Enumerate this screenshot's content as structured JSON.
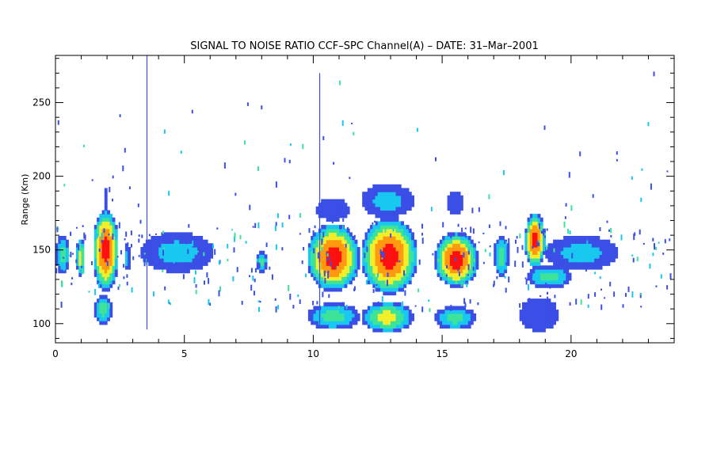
{
  "chart_data": {
    "type": "heatmap",
    "title": "SIGNAL TO NOISE RATIO CCF–SPC Channel(A) – DATE: 31–Mar–2001",
    "xlabel": "",
    "ylabel": "Range (Km)",
    "xlim": [
      0,
      24
    ],
    "ylim": [
      87,
      282
    ],
    "x_ticks": [
      0,
      5,
      10,
      15,
      20
    ],
    "x_tick_labels": [
      "0",
      "5",
      "10",
      "15",
      "20"
    ],
    "y_ticks": [
      100,
      150,
      200,
      250
    ],
    "y_tick_labels": [
      "100",
      "150",
      "200",
      "250"
    ],
    "grid": false,
    "colormap": [
      "#ffffff",
      "#3b4fe6",
      "#18c8ee",
      "#3ee39a",
      "#f2ef2a",
      "#ff9a10",
      "#ff1010"
    ],
    "echoes": [
      {
        "t0": 0.0,
        "t1": 0.55,
        "r0": 134,
        "r1": 160,
        "level": 3
      },
      {
        "t0": 0.8,
        "t1": 1.15,
        "r0": 132,
        "r1": 158,
        "level": 4
      },
      {
        "t0": 1.45,
        "t1": 2.45,
        "r0": 122,
        "r1": 178,
        "level": 6
      },
      {
        "t0": 1.85,
        "t1": 2.05,
        "r0": 176,
        "r1": 192,
        "level": 1
      },
      {
        "t0": 1.5,
        "t1": 2.2,
        "r0": 100,
        "r1": 120,
        "level": 3
      },
      {
        "t0": 2.65,
        "t1": 2.9,
        "r0": 136,
        "r1": 154,
        "level": 2
      },
      {
        "t0": 3.3,
        "t1": 6.15,
        "r0": 135,
        "r1": 162,
        "level": 2
      },
      {
        "t0": 7.8,
        "t1": 8.2,
        "r0": 135,
        "r1": 150,
        "level": 3
      },
      {
        "t0": 9.75,
        "t1": 11.8,
        "r0": 122,
        "r1": 168,
        "level": 6
      },
      {
        "t0": 10.1,
        "t1": 11.4,
        "r0": 170,
        "r1": 185,
        "level": 1
      },
      {
        "t0": 9.75,
        "t1": 11.8,
        "r0": 96,
        "r1": 114,
        "level": 3
      },
      {
        "t0": 11.85,
        "t1": 14.05,
        "r0": 120,
        "r1": 172,
        "level": 6
      },
      {
        "t0": 11.85,
        "t1": 13.9,
        "r0": 172,
        "r1": 195,
        "level": 2
      },
      {
        "t0": 11.85,
        "t1": 13.9,
        "r0": 94,
        "r1": 115,
        "level": 4
      },
      {
        "t0": 14.7,
        "t1": 16.4,
        "r0": 125,
        "r1": 162,
        "level": 6
      },
      {
        "t0": 14.7,
        "t1": 16.3,
        "r0": 96,
        "r1": 112,
        "level": 3
      },
      {
        "t0": 15.2,
        "t1": 15.8,
        "r0": 174,
        "r1": 190,
        "level": 1
      },
      {
        "t0": 17.0,
        "t1": 17.6,
        "r0": 132,
        "r1": 160,
        "level": 3
      },
      {
        "t0": 18.2,
        "t1": 19.0,
        "r0": 138,
        "r1": 175,
        "level": 6
      },
      {
        "t0": 18.3,
        "t1": 20.0,
        "r0": 124,
        "r1": 140,
        "level": 3
      },
      {
        "t0": 19.0,
        "t1": 21.8,
        "r0": 136,
        "r1": 160,
        "level": 2
      },
      {
        "t0": 18.0,
        "t1": 19.5,
        "r0": 95,
        "r1": 118,
        "level": 1
      }
    ]
  }
}
